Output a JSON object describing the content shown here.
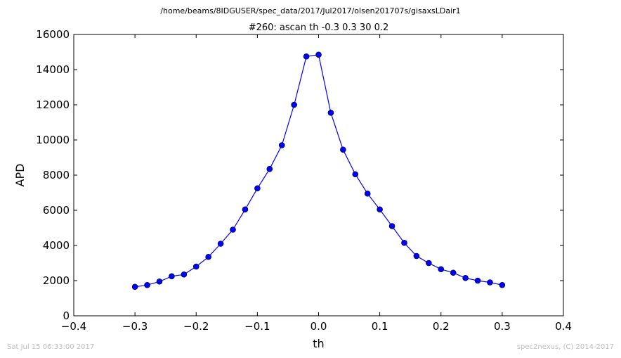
{
  "suptitle": "/home/beams/8IDGUSER/spec_data/2017/Jul2017/olsen201707s/gisaxsLDair1",
  "footer": {
    "left": "Sat Jul 15 06:33:00 2017",
    "right": "spec2nexus, (C) 2014-2017"
  },
  "chart_data": {
    "type": "line",
    "title": "#260: ascan  th -0.3 0.3  30 0.2",
    "xlabel": "th",
    "ylabel": "APD",
    "xlim": [
      -0.4,
      0.4
    ],
    "ylim": [
      0,
      16000
    ],
    "xticks": [
      -0.4,
      -0.3,
      -0.2,
      -0.1,
      0.0,
      0.1,
      0.2,
      0.3,
      0.4
    ],
    "xtick_labels": [
      "−0.4",
      "−0.3",
      "−0.2",
      "−0.1",
      "0.0",
      "0.1",
      "0.2",
      "0.3",
      "0.4"
    ],
    "yticks": [
      0,
      2000,
      4000,
      6000,
      8000,
      10000,
      12000,
      14000,
      16000
    ],
    "ytick_labels": [
      "0",
      "2000",
      "4000",
      "6000",
      "8000",
      "10000",
      "12000",
      "14000",
      "16000"
    ],
    "grid": false,
    "marker": "circle",
    "color": "#0000ff",
    "series": [
      {
        "x": [
          -0.3,
          -0.28,
          -0.26,
          -0.24,
          -0.22,
          -0.2,
          -0.18,
          -0.16,
          -0.14,
          -0.12,
          -0.1,
          -0.08,
          -0.06,
          -0.04,
          -0.02,
          0.0,
          0.02,
          0.04,
          0.06,
          0.08,
          0.1,
          0.12,
          0.14,
          0.16,
          0.18,
          0.2,
          0.22,
          0.24,
          0.26,
          0.28,
          0.3
        ],
        "y": [
          1650,
          1750,
          1950,
          2250,
          2350,
          2800,
          3350,
          4100,
          4900,
          6050,
          7250,
          8350,
          9700,
          12000,
          14750,
          14850,
          11550,
          9450,
          8050,
          6950,
          6050,
          5100,
          4150,
          3400,
          3000,
          2650,
          2450,
          2150,
          2000,
          1900,
          1750
        ]
      }
    ]
  }
}
